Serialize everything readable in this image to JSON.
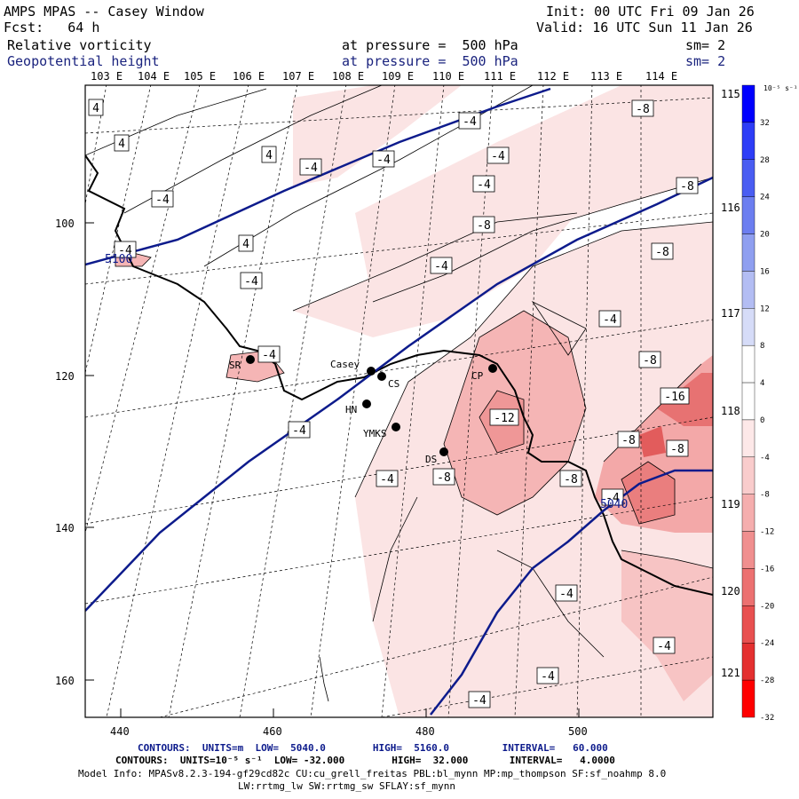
{
  "header": {
    "title": "AMPS MPAS -- Casey Window",
    "forecast": "Fcst:   64 h",
    "init": "Init: 00 UTC Fri 09 Jan 26",
    "valid": "Valid: 16 UTC Sun 11 Jan 26",
    "field1_name": "Relative vorticity",
    "field1_level": "at pressure =  500 hPa",
    "field1_sm": "sm= 2",
    "field2_name": "Geopotential height",
    "field2_level": "at pressure =  500 hPa",
    "field2_sm": "sm= 2"
  },
  "map": {
    "lon_labels": [
      "103 E",
      "104 E",
      "105 E",
      "106 E",
      "107 E",
      "108 E",
      "109 E",
      "110 E",
      "111 E",
      "112 E",
      "113 E",
      "114 E"
    ],
    "lat_labels_right": [
      "115 E",
      "116 E",
      "117 E",
      "118 E",
      "119 E",
      "120 E",
      "121 E"
    ],
    "x_ticks": [
      "440",
      "460",
      "480",
      "500"
    ],
    "y_ticks": [
      "100",
      "120",
      "140",
      "160"
    ],
    "stations": [
      {
        "name": "SR"
      },
      {
        "name": "Casey"
      },
      {
        "name": "CS"
      },
      {
        "name": "HN"
      },
      {
        "name": "YMKS"
      },
      {
        "name": "DS"
      },
      {
        "name": "CP"
      }
    ],
    "contour_labels": [
      "4",
      "4",
      "4",
      "4",
      "-4",
      "-4",
      "-4",
      "-4",
      "-4",
      "-4",
      "-4",
      "-4",
      "-4",
      "-4",
      "-4",
      "-4",
      "-4",
      "-8",
      "-8",
      "-8",
      "-8",
      "-8",
      "-8",
      "-8",
      "-8",
      "-8",
      "-12",
      "-16",
      "-4",
      "-4",
      "-4",
      "-4",
      "-4"
    ],
    "height_labels": [
      "5100",
      "5040"
    ],
    "colors": {
      "height_contour": "#0d1b8c",
      "coast": "#000000"
    }
  },
  "colorbar": {
    "unit": "10⁻⁵ s⁻¹",
    "values": [
      "32",
      "28",
      "24",
      "20",
      "16",
      "12",
      "8",
      "4",
      "0",
      "-4",
      "-8",
      "-12",
      "-16",
      "-20",
      "-24",
      "-28",
      "-32"
    ],
    "colors": [
      "#0000ff",
      "#2d3df7",
      "#4a5df2",
      "#6c7ef0",
      "#8f9ff0",
      "#b3bdf3",
      "#d6dcf8",
      "#ffffff",
      "#ffffff",
      "#fde8e8",
      "#f9cccc",
      "#f5aeae",
      "#f08f8f",
      "#ec7171",
      "#e85050",
      "#e43030",
      "#ff0000"
    ]
  },
  "footer": {
    "line1_label": "CONTOURS:  UNITS=m  LOW=  5040.0        HIGH=  5160.0         INTERVAL=   60.000",
    "line2_label": "CONTOURS:  UNITS=10⁻⁵ s⁻¹  LOW= -32.000        HIGH=  32.000       INTERVAL=   4.0000",
    "line3": "Model Info: MPASv8.2.3-194-gf29cd82c CU:cu_grell_freitas PBL:bl_mynn MP:mp_thompson SF:sf_noahmp 8.0",
    "line4": "LW:rrtmg_lw SW:rrtmg_sw SFLAY:sf_mynn"
  }
}
